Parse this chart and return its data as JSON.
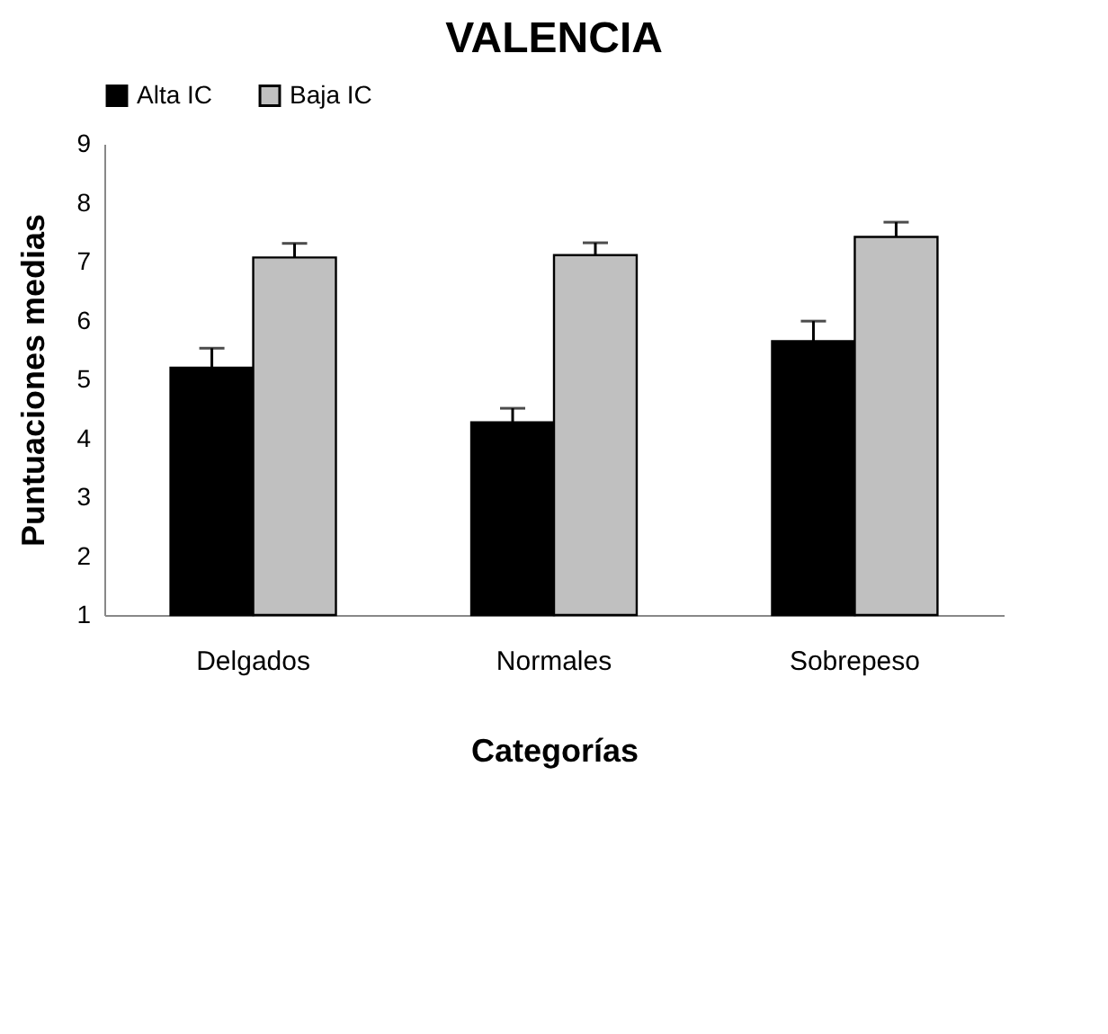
{
  "chart_data": {
    "type": "bar",
    "title": "VALENCIA",
    "xlabel": "Categorías",
    "ylabel": "Puntuaciones medias",
    "categories": [
      "Delgados",
      "Normales",
      "Sobrepeso"
    ],
    "series": [
      {
        "name": "Alta IC",
        "color": "#000000",
        "values": [
          5.2,
          4.27,
          5.65
        ],
        "errors": [
          [
            5.2,
            5.53
          ],
          [
            4.27,
            4.51
          ],
          [
            5.65,
            5.99
          ]
        ]
      },
      {
        "name": "Baja IC",
        "color": "#c0c0c0",
        "values": [
          7.07,
          7.11,
          7.42
        ],
        "errors": [
          [
            7.07,
            7.31
          ],
          [
            7.11,
            7.32
          ],
          [
            7.42,
            7.67
          ]
        ]
      }
    ],
    "ylim": [
      1,
      9
    ],
    "yticks": [
      1,
      2,
      3,
      4,
      5,
      6,
      7,
      8,
      9
    ],
    "grid": false,
    "legend": "top"
  }
}
